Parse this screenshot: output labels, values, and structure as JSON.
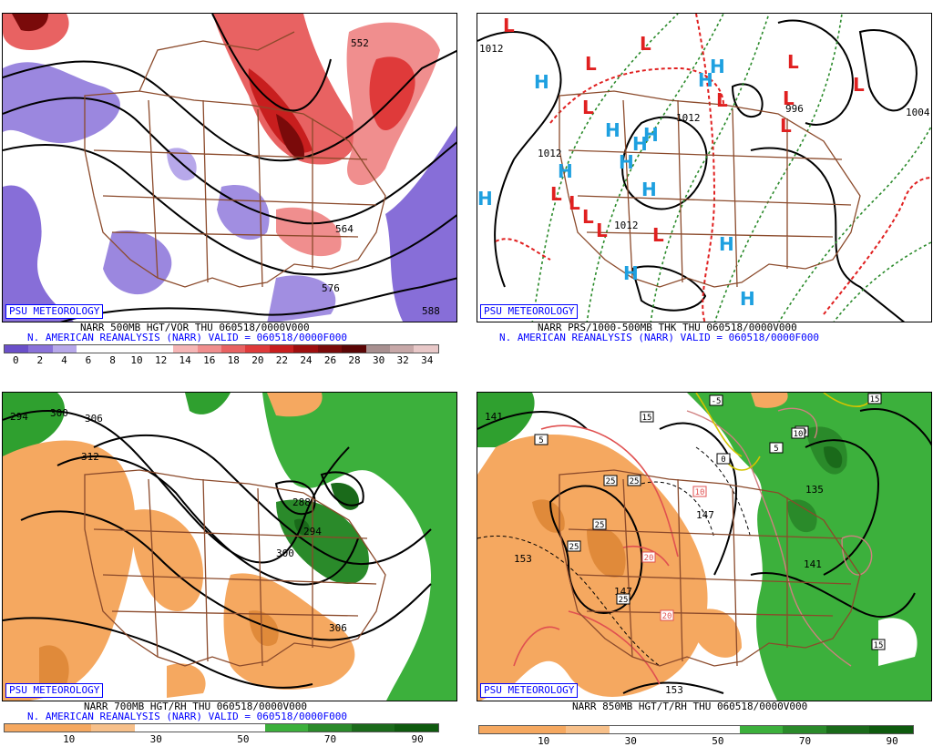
{
  "panels": [
    {
      "psu_label": "PSU METEOROLOGY",
      "title_line": "NARR 500MB HGT/VOR THU 060518/0000V000",
      "valid_line": "N. AMERICAN REANALYSIS (NARR) VALID = 060518/0000F000",
      "contour_labels": [
        "552",
        "564",
        "576",
        "588"
      ],
      "colorbar_ticks": [
        "0",
        "2",
        "4",
        "6",
        "8",
        "10",
        "12",
        "14",
        "16",
        "18",
        "20",
        "22",
        "24",
        "26",
        "28",
        "30",
        "32",
        "34"
      ],
      "colorbar_colors": [
        "#6a4fc9",
        "#8a72d9",
        "#b7a8ea",
        "#ffffff",
        "#ffffff",
        "#ffffff",
        "#ffffff",
        "#f6b6b6",
        "#f08e8e",
        "#e86262",
        "#df3a3a",
        "#c81e1e",
        "#9e0e0e",
        "#7a0a0a",
        "#5a0505",
        "#a89090",
        "#c7a8a8",
        "#e8c8c8"
      ]
    },
    {
      "psu_label": "PSU METEOROLOGY",
      "title_line": "NARR PRS/1000-500MB THK THU 060518/0000V000",
      "valid_line": "N. AMERICAN REANALYSIS (NARR) VALID = 060518/0000F000",
      "contour_labels": [
        "1012",
        "1004",
        "1012",
        "1012",
        "1012",
        "996"
      ],
      "highs": [
        "H",
        "H",
        "H",
        "H",
        "H",
        "H",
        "H",
        "H",
        "H",
        "H",
        "H",
        "H",
        "H"
      ],
      "lows": [
        "L",
        "L",
        "L",
        "L",
        "L",
        "L",
        "L",
        "L",
        "L",
        "L",
        "L",
        "L",
        "L",
        "L"
      ]
    },
    {
      "psu_label": "PSU METEOROLOGY",
      "title_line": "NARR 700MB HGT/RH THU 060518/0000V000",
      "valid_line": "N. AMERICAN REANALYSIS (NARR) VALID = 060518/0000F000",
      "contour_labels": [
        "294",
        "300",
        "306",
        "312",
        "288",
        "294",
        "300",
        "306"
      ],
      "colorbar_ticks": [
        "10",
        "30",
        "50",
        "70",
        "90"
      ]
    },
    {
      "psu_label": "PSU METEOROLOGY",
      "title_line": "NARR 850MB HGT/T/RH THU 060518/0000V000",
      "contour_labels": [
        "141",
        "147",
        "153",
        "135",
        "141",
        "147",
        "153"
      ],
      "temp_labels": [
        "5",
        "15",
        "25",
        "25",
        "25",
        "25",
        "25",
        "20",
        "20",
        "10",
        "-5",
        "5",
        "10",
        "15",
        "0",
        "10",
        "15"
      ],
      "colorbar_ticks": [
        "10",
        "30",
        "50",
        "70",
        "90"
      ]
    }
  ]
}
